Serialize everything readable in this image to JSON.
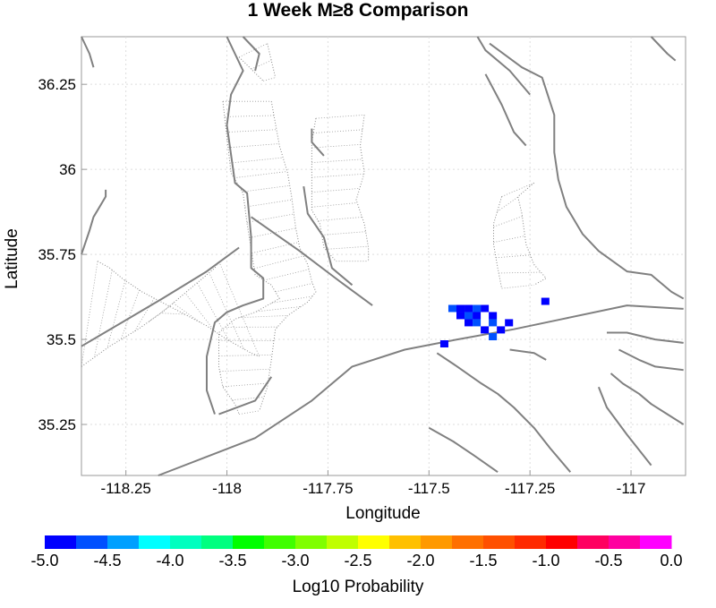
{
  "chart_data": {
    "type": "heatmap",
    "title": "1 Week M≥8 Comparison",
    "xlabel": "Longitude",
    "ylabel": "Latitude",
    "xlim": [
      -118.36,
      -116.865
    ],
    "ylim": [
      35.1,
      36.39
    ],
    "xticks": [
      -118.25,
      -118.0,
      -117.75,
      -117.5,
      -117.25,
      -117.0
    ],
    "xtick_labels": [
      "-118.25",
      "-118",
      "-117.75",
      "-117.5",
      "-117.25",
      "-117"
    ],
    "yticks": [
      35.25,
      35.5,
      35.75,
      36.0,
      36.25
    ],
    "ytick_labels": [
      "35.25",
      "35.5",
      "35.75",
      "36",
      "36.25"
    ],
    "grid": true,
    "colorbar": {
      "label": "Log10 Probability",
      "range": [
        -5.0,
        0.0
      ],
      "tick_values": [
        -5.0,
        -4.5,
        -4.0,
        -3.5,
        -3.0,
        -2.5,
        -2.0,
        -1.5,
        -1.0,
        -0.5,
        0.0
      ],
      "tick_labels": [
        "-5.0",
        "-4.5",
        "-4.0",
        "-3.5",
        "-3.0",
        "-2.5",
        "-2.0",
        "-1.5",
        "-1.0",
        "-0.5",
        "0.0"
      ],
      "colors": [
        "#0000ff",
        "#0050ff",
        "#00a0ff",
        "#00ffff",
        "#00ffbf",
        "#00ff80",
        "#00ff00",
        "#40ff00",
        "#80ff00",
        "#c0ff00",
        "#ffff00",
        "#ffc000",
        "#ff9900",
        "#ff7000",
        "#ff5000",
        "#ff2a00",
        "#ff0000",
        "#ff0060",
        "#ff00a0",
        "#ff00ff"
      ]
    },
    "cells": [
      {
        "lon": -117.442,
        "lat": 35.591,
        "value": -4.6
      },
      {
        "lon": -117.422,
        "lat": 35.591,
        "value": -4.9
      },
      {
        "lon": -117.402,
        "lat": 35.591,
        "value": -4.9
      },
      {
        "lon": -117.382,
        "lat": 35.591,
        "value": -4.7
      },
      {
        "lon": -117.362,
        "lat": 35.591,
        "value": -4.9
      },
      {
        "lon": -117.422,
        "lat": 35.57,
        "value": -4.9
      },
      {
        "lon": -117.402,
        "lat": 35.57,
        "value": -4.7
      },
      {
        "lon": -117.382,
        "lat": 35.57,
        "value": -4.9
      },
      {
        "lon": -117.342,
        "lat": 35.57,
        "value": -4.9
      },
      {
        "lon": -117.402,
        "lat": 35.549,
        "value": -4.9
      },
      {
        "lon": -117.382,
        "lat": 35.549,
        "value": -4.7
      },
      {
        "lon": -117.342,
        "lat": 35.549,
        "value": -4.6
      },
      {
        "lon": -117.302,
        "lat": 35.549,
        "value": -4.9
      },
      {
        "lon": -117.362,
        "lat": 35.528,
        "value": -4.9
      },
      {
        "lon": -117.322,
        "lat": 35.528,
        "value": -4.9
      },
      {
        "lon": -117.342,
        "lat": 35.508,
        "value": -4.6
      },
      {
        "lon": -117.462,
        "lat": 35.487,
        "value": -4.9
      },
      {
        "lon": -117.212,
        "lat": 35.612,
        "value": -4.9
      }
    ],
    "faults": [
      [
        [
          -118.17,
          35.1
        ],
        [
          -117.93,
          35.21
        ],
        [
          -117.79,
          35.32
        ],
        [
          -117.69,
          35.42
        ],
        [
          -117.56,
          35.47
        ],
        [
          -117.43,
          35.5
        ],
        [
          -117.29,
          35.53
        ],
        [
          -117.17,
          35.56
        ],
        [
          -117.01,
          35.6
        ],
        [
          -116.87,
          35.59
        ]
      ],
      [
        [
          -118.02,
          35.28
        ],
        [
          -117.93,
          35.32
        ],
        [
          -117.89,
          35.39
        ]
      ],
      [
        [
          -118.0,
          36.39
        ],
        [
          -117.96,
          36.29
        ],
        [
          -117.99,
          36.22
        ],
        [
          -118.0,
          36.13
        ],
        [
          -117.98,
          35.96
        ],
        [
          -117.95,
          35.93
        ],
        [
          -117.94,
          35.8
        ],
        [
          -117.94,
          35.71
        ],
        [
          -117.91,
          35.68
        ],
        [
          -117.91,
          35.62
        ],
        [
          -117.96,
          35.6
        ],
        [
          -118.0,
          35.58
        ],
        [
          -118.03,
          35.55
        ],
        [
          -118.05,
          35.45
        ],
        [
          -118.05,
          35.35
        ],
        [
          -118.03,
          35.28
        ]
      ],
      [
        [
          -117.94,
          35.86
        ],
        [
          -117.82,
          35.76
        ],
        [
          -117.72,
          35.67
        ],
        [
          -117.64,
          35.6
        ]
      ],
      [
        [
          -117.81,
          35.95
        ],
        [
          -117.8,
          35.87
        ],
        [
          -117.76,
          35.8
        ],
        [
          -117.74,
          35.71
        ],
        [
          -117.69,
          35.66
        ]
      ],
      [
        [
          -117.79,
          36.12
        ],
        [
          -117.79,
          36.08
        ],
        [
          -117.76,
          36.04
        ]
      ],
      [
        [
          -117.96,
          36.39
        ],
        [
          -117.92,
          36.34
        ],
        [
          -117.93,
          36.29
        ]
      ],
      [
        [
          -117.38,
          36.39
        ],
        [
          -117.36,
          36.35
        ],
        [
          -117.3,
          36.29
        ],
        [
          -117.25,
          36.22
        ]
      ],
      [
        [
          -117.36,
          36.28
        ],
        [
          -117.32,
          36.19
        ],
        [
          -117.29,
          36.11
        ],
        [
          -117.26,
          36.07
        ]
      ],
      [
        [
          -117.35,
          36.37
        ],
        [
          -117.27,
          36.3
        ],
        [
          -117.22,
          36.27
        ],
        [
          -117.19,
          36.16
        ],
        [
          -117.19,
          36.05
        ],
        [
          -117.18,
          35.97
        ],
        [
          -117.16,
          35.89
        ],
        [
          -117.12,
          35.81
        ],
        [
          -117.08,
          35.76
        ],
        [
          -117.01,
          35.7
        ],
        [
          -116.95,
          35.69
        ],
        [
          -116.9,
          35.64
        ],
        [
          -116.87,
          35.62
        ]
      ],
      [
        [
          -116.95,
          36.39
        ],
        [
          -116.91,
          36.34
        ],
        [
          -116.89,
          36.32
        ]
      ],
      [
        [
          -118.36,
          35.75
        ],
        [
          -118.34,
          35.82
        ],
        [
          -118.33,
          35.86
        ],
        [
          -118.32,
          35.88
        ],
        [
          -118.3,
          35.92
        ],
        [
          -118.3,
          35.94
        ]
      ],
      [
        [
          -118.36,
          35.48
        ],
        [
          -118.26,
          35.55
        ],
        [
          -118.16,
          35.62
        ],
        [
          -118.05,
          35.7
        ],
        [
          -117.97,
          35.77
        ]
      ],
      [
        [
          -117.21,
          35.44
        ],
        [
          -117.24,
          35.46
        ],
        [
          -117.3,
          35.47
        ]
      ],
      [
        [
          -117.48,
          35.46
        ],
        [
          -117.43,
          35.42
        ],
        [
          -117.37,
          35.37
        ],
        [
          -117.33,
          35.34
        ],
        [
          -117.29,
          35.3
        ],
        [
          -117.24,
          35.24
        ],
        [
          -117.2,
          35.18
        ],
        [
          -117.15,
          35.11
        ]
      ],
      [
        [
          -117.5,
          35.24
        ],
        [
          -117.44,
          35.2
        ],
        [
          -117.39,
          35.16
        ],
        [
          -117.33,
          35.11
        ]
      ],
      [
        [
          -117.05,
          35.4
        ],
        [
          -117.02,
          35.37
        ],
        [
          -116.98,
          35.34
        ],
        [
          -116.95,
          35.31
        ],
        [
          -116.91,
          35.28
        ],
        [
          -116.87,
          35.25
        ]
      ],
      [
        [
          -117.03,
          35.47
        ],
        [
          -116.98,
          35.44
        ],
        [
          -116.94,
          35.42
        ],
        [
          -116.87,
          35.41
        ]
      ],
      [
        [
          -117.06,
          35.52
        ],
        [
          -117.01,
          35.52
        ],
        [
          -116.94,
          35.5
        ],
        [
          -116.87,
          35.49
        ]
      ],
      [
        [
          -117.08,
          35.36
        ],
        [
          -117.06,
          35.3
        ],
        [
          -117.01,
          35.22
        ],
        [
          -116.95,
          35.13
        ]
      ],
      [
        [
          -118.36,
          36.39
        ],
        [
          -118.34,
          36.34
        ],
        [
          -118.33,
          36.3
        ]
      ]
    ],
    "zones": [
      {
        "a": [
          [
            -117.97,
            36.33
          ],
          [
            -117.91,
            36.26
          ]
        ],
        "b": [
          [
            -117.9,
            36.37
          ],
          [
            -117.88,
            36.27
          ]
        ]
      },
      {
        "a": [
          [
            -118.01,
            36.2
          ],
          [
            -117.99,
            35.99
          ],
          [
            -117.96,
            35.93
          ],
          [
            -117.95,
            35.84
          ],
          [
            -117.93,
            35.69
          ],
          [
            -117.89,
            35.66
          ],
          [
            -117.87,
            35.62
          ],
          [
            -117.93,
            35.58
          ],
          [
            -117.98,
            35.56
          ],
          [
            -118.02,
            35.52
          ],
          [
            -118.02,
            35.42
          ],
          [
            -118.01,
            35.36
          ],
          [
            -117.98,
            35.31
          ],
          [
            -117.97,
            35.28
          ]
        ],
        "b": [
          [
            -117.89,
            36.2
          ],
          [
            -117.87,
            36.07
          ],
          [
            -117.85,
            35.99
          ],
          [
            -117.84,
            35.92
          ],
          [
            -117.83,
            35.83
          ],
          [
            -117.82,
            35.77
          ],
          [
            -117.8,
            35.72
          ],
          [
            -117.79,
            35.67
          ],
          [
            -117.78,
            35.64
          ],
          [
            -117.8,
            35.61
          ],
          [
            -117.85,
            35.57
          ],
          [
            -117.88,
            35.53
          ],
          [
            -117.89,
            35.44
          ],
          [
            -117.9,
            35.36
          ],
          [
            -117.92,
            35.29
          ]
        ]
      },
      {
        "a": [
          [
            -117.78,
            36.15
          ],
          [
            -117.79,
            36.08
          ],
          [
            -117.79,
            35.98
          ],
          [
            -117.79,
            35.88
          ],
          [
            -117.77,
            35.84
          ],
          [
            -117.76,
            35.77
          ],
          [
            -117.73,
            35.73
          ]
        ],
        "b": [
          [
            -117.66,
            36.16
          ],
          [
            -117.67,
            36.07
          ],
          [
            -117.66,
            35.99
          ],
          [
            -117.68,
            35.91
          ],
          [
            -117.66,
            35.84
          ],
          [
            -117.65,
            35.77
          ],
          [
            -117.65,
            35.73
          ]
        ]
      },
      {
        "a": [
          [
            -117.32,
            35.92
          ],
          [
            -117.34,
            35.84
          ],
          [
            -117.34,
            35.78
          ],
          [
            -117.33,
            35.71
          ],
          [
            -117.32,
            35.65
          ]
        ],
        "b": [
          [
            -117.24,
            35.96
          ],
          [
            -117.28,
            35.92
          ],
          [
            -117.27,
            35.87
          ],
          [
            -117.26,
            35.78
          ],
          [
            -117.24,
            35.72
          ],
          [
            -117.21,
            35.68
          ],
          [
            -117.24,
            35.66
          ]
        ]
      },
      {
        "a": [
          [
            -118.32,
            35.73
          ],
          [
            -118.29,
            35.71
          ],
          [
            -118.26,
            35.68
          ],
          [
            -118.21,
            35.64
          ],
          [
            -118.13,
            35.59
          ],
          [
            -118.05,
            35.54
          ],
          [
            -118.0,
            35.5
          ],
          [
            -117.97,
            35.48
          ],
          [
            -117.94,
            35.46
          ],
          [
            -117.92,
            35.45
          ]
        ],
        "b": [
          [
            -118.36,
            35.42
          ],
          [
            -118.29,
            35.48
          ],
          [
            -118.22,
            35.53
          ],
          [
            -118.16,
            35.58
          ],
          [
            -118.12,
            35.62
          ],
          [
            -118.08,
            35.66
          ],
          [
            -118.05,
            35.69
          ],
          [
            -118.03,
            35.71
          ],
          [
            -118.02,
            35.73
          ]
        ]
      }
    ]
  }
}
